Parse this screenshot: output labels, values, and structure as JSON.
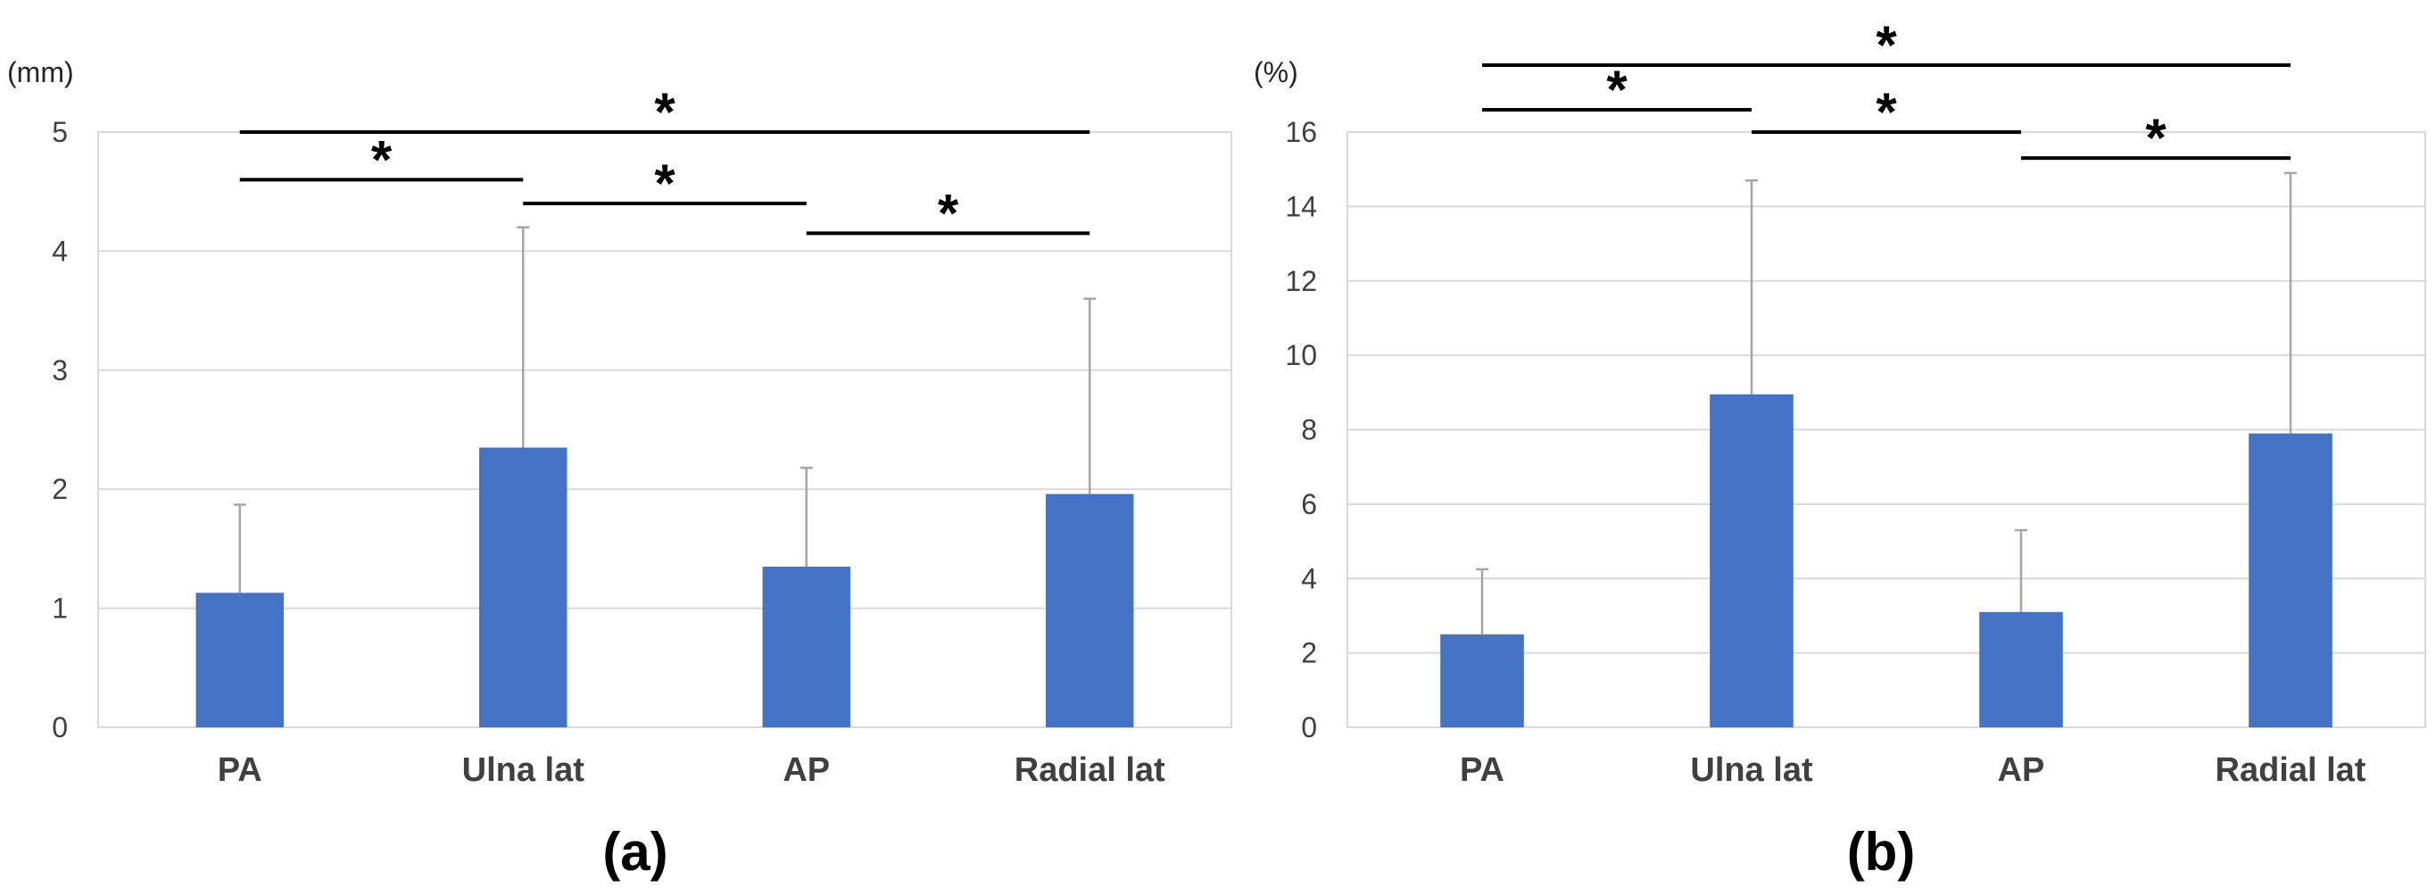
{
  "colors": {
    "bar": "#4472C4",
    "error": "#A6A6A6",
    "grid": "#D9D9D9",
    "sig": "#000000"
  },
  "chart_data": [
    {
      "type": "bar",
      "panel_label": "(a)",
      "y_unit": "(mm)",
      "categories": [
        "PA",
        "Ulna lat",
        "AP",
        "Radial lat"
      ],
      "values": [
        1.13,
        2.35,
        1.35,
        1.96
      ],
      "error_upper": [
        1.87,
        4.2,
        2.18,
        3.6
      ],
      "ylim": [
        0,
        5
      ],
      "yticks": [
        "0",
        "1",
        "2",
        "3",
        "4",
        "5"
      ],
      "grid": true,
      "significance": [
        {
          "from": 0,
          "to": 3,
          "label": "*",
          "level": 5.0
        },
        {
          "from": 0,
          "to": 1,
          "label": "*",
          "level": 4.6
        },
        {
          "from": 1,
          "to": 2,
          "label": "*",
          "level": 4.4
        },
        {
          "from": 2,
          "to": 3,
          "label": "*",
          "level": 4.15
        }
      ]
    },
    {
      "type": "bar",
      "panel_label": "(b)",
      "y_unit": "(%)",
      "categories": [
        "PA",
        "Ulna lat",
        "AP",
        "Radial lat"
      ],
      "values": [
        2.5,
        8.95,
        3.1,
        7.9
      ],
      "error_upper": [
        4.25,
        14.7,
        5.3,
        14.9
      ],
      "ylim": [
        0,
        16
      ],
      "yticks": [
        "0",
        "2",
        "4",
        "6",
        "8",
        "10",
        "12",
        "14",
        "16"
      ],
      "grid": true,
      "significance": [
        {
          "from": 0,
          "to": 3,
          "label": "*",
          "level": 17.8
        },
        {
          "from": 0,
          "to": 1,
          "label": "*",
          "level": 16.6
        },
        {
          "from": 1,
          "to": 2,
          "label": "*",
          "level": 16.0
        },
        {
          "from": 2,
          "to": 3,
          "label": "*",
          "level": 15.3
        }
      ]
    }
  ]
}
